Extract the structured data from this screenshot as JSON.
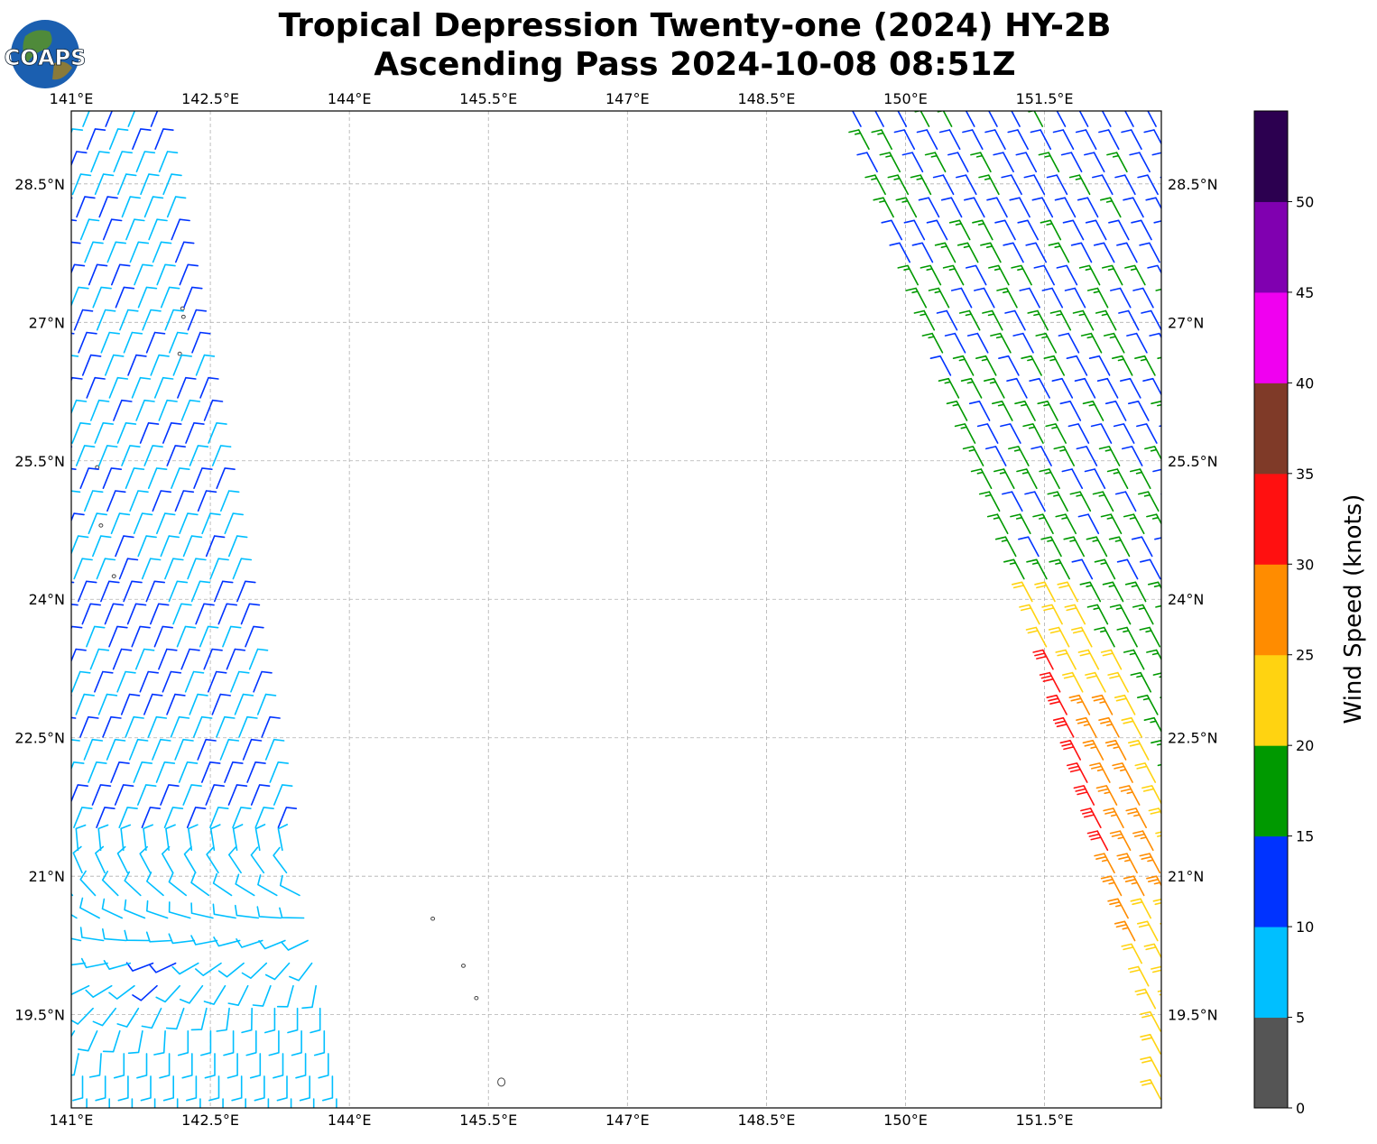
{
  "title": {
    "line1": "Tropical Depression Twenty-one (2024) HY-2B",
    "line2": "Ascending Pass 2024-10-08 08:51Z"
  },
  "logo": {
    "text": "COAPS"
  },
  "chart_data": {
    "type": "wind-barb-map",
    "lon_range": [
      141,
      152.76
    ],
    "lat_range": [
      18.49,
      29.29
    ],
    "lon_ticks": [
      141,
      142.5,
      144,
      145.5,
      147,
      148.5,
      150,
      151.5
    ],
    "lon_tick_labels": [
      "141°E",
      "142.5°E",
      "144°E",
      "145.5°E",
      "147°E",
      "148.5°E",
      "150°E",
      "151.5°E"
    ],
    "lat_ticks": [
      19.5,
      21,
      22.5,
      24,
      25.5,
      27,
      28.5
    ],
    "lat_tick_labels": [
      "19.5°N",
      "21°N",
      "22.5°N",
      "24°N",
      "25.5°N",
      "27°N",
      "28.5°N"
    ],
    "grid": true,
    "swaths": [
      {
        "name": "west",
        "east_edge_lon_at_top": 141.95,
        "east_edge_lon_at_bottom": 143.9,
        "typical_speed_kt": [
          5,
          15
        ]
      },
      {
        "name": "east",
        "west_edge": [
          [
            29.29,
            149.5
          ],
          [
            24,
            151.4
          ],
          [
            21,
            152.3
          ],
          [
            19.5,
            152.75
          ]
        ],
        "typical_speed_kt": [
          10,
          35
        ],
        "max_speed_kt": 32
      }
    ],
    "islands": [
      [
        142.2,
        27.15
      ],
      [
        142.21,
        27.06
      ],
      [
        142.17,
        26.66
      ],
      [
        141.28,
        25.43
      ],
      [
        141.32,
        24.8
      ],
      [
        141.46,
        24.25
      ],
      [
        144.9,
        20.54
      ],
      [
        145.23,
        20.03
      ],
      [
        145.37,
        19.68
      ],
      [
        145.64,
        18.77
      ]
    ],
    "colorbar": {
      "label": "Wind Speed (knots)",
      "bounds": [
        0,
        5,
        10,
        15,
        20,
        25,
        30,
        35,
        40,
        45,
        50,
        55
      ],
      "colors": [
        "#555555",
        "#00bfff",
        "#0033ff",
        "#009900",
        "#ffd311",
        "#ff8c00",
        "#ff1010",
        "#7f3a28",
        "#f000f0",
        "#8000b0",
        "#2c0050"
      ],
      "tick_labels": [
        "0",
        "5",
        "10",
        "15",
        "20",
        "25",
        "30",
        "35",
        "40",
        "45",
        "50"
      ]
    }
  }
}
